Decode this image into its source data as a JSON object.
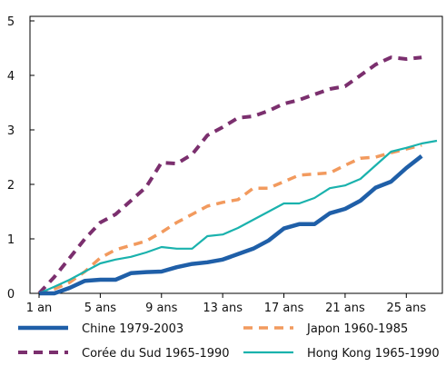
{
  "chart_data": {
    "type": "line",
    "x": [
      1,
      2,
      3,
      4,
      5,
      6,
      7,
      8,
      9,
      10,
      11,
      12,
      13,
      14,
      15,
      16,
      17,
      18,
      19,
      20,
      21,
      22,
      23,
      24,
      25,
      26,
      27
    ],
    "x_tick_labels": [
      "1 an",
      "5 ans",
      "9 ans",
      "13 ans",
      "17 ans",
      "21 ans",
      "25 ans"
    ],
    "x_tick_positions": [
      1,
      5,
      9,
      13,
      17,
      21,
      25
    ],
    "y_tick_labels": [
      "0",
      "1",
      "2",
      "3",
      "4",
      "5"
    ],
    "ylim": [
      0,
      5
    ],
    "xlim": [
      1,
      27
    ],
    "grid": false,
    "legend_placement": "bottom",
    "series": [
      {
        "name": "Chine 1979-2003",
        "color": "#1f5fa8",
        "style": "solid-thick",
        "values": [
          0.0,
          0.0,
          0.1,
          0.23,
          0.25,
          0.25,
          0.37,
          0.39,
          0.4,
          0.48,
          0.54,
          0.57,
          0.62,
          0.72,
          0.82,
          0.97,
          1.19,
          1.27,
          1.27,
          1.47,
          1.55,
          1.7,
          1.94,
          2.05,
          2.3,
          2.52,
          null
        ]
      },
      {
        "name": "Japon 1960-1985",
        "color": "#f29a5e",
        "style": "dashed",
        "values": [
          0.0,
          0.08,
          0.2,
          0.4,
          0.65,
          0.8,
          0.88,
          0.96,
          1.12,
          1.3,
          1.45,
          1.6,
          1.67,
          1.72,
          1.93,
          1.93,
          2.05,
          2.17,
          2.19,
          2.21,
          2.35,
          2.48,
          2.5,
          2.58,
          2.65,
          2.72,
          null
        ]
      },
      {
        "name": "Corée du Sud 1965-1990",
        "color": "#7b2f6e",
        "style": "dashed-thick",
        "values": [
          0.0,
          0.3,
          0.65,
          1.0,
          1.3,
          1.45,
          1.7,
          1.95,
          2.4,
          2.38,
          2.55,
          2.9,
          3.05,
          3.22,
          3.25,
          3.35,
          3.48,
          3.55,
          3.65,
          3.75,
          3.8,
          4.0,
          4.2,
          4.33,
          4.3,
          4.33,
          null
        ]
      },
      {
        "name": "Hong Kong 1965-1990",
        "color": "#1ab2ad",
        "style": "solid",
        "values": [
          0.0,
          0.12,
          0.25,
          0.4,
          0.55,
          0.62,
          0.67,
          0.75,
          0.85,
          0.82,
          0.82,
          1.05,
          1.08,
          1.2,
          1.35,
          1.5,
          1.65,
          1.65,
          1.75,
          1.93,
          1.98,
          2.1,
          2.35,
          2.6,
          2.67,
          2.75,
          2.8
        ]
      }
    ]
  }
}
